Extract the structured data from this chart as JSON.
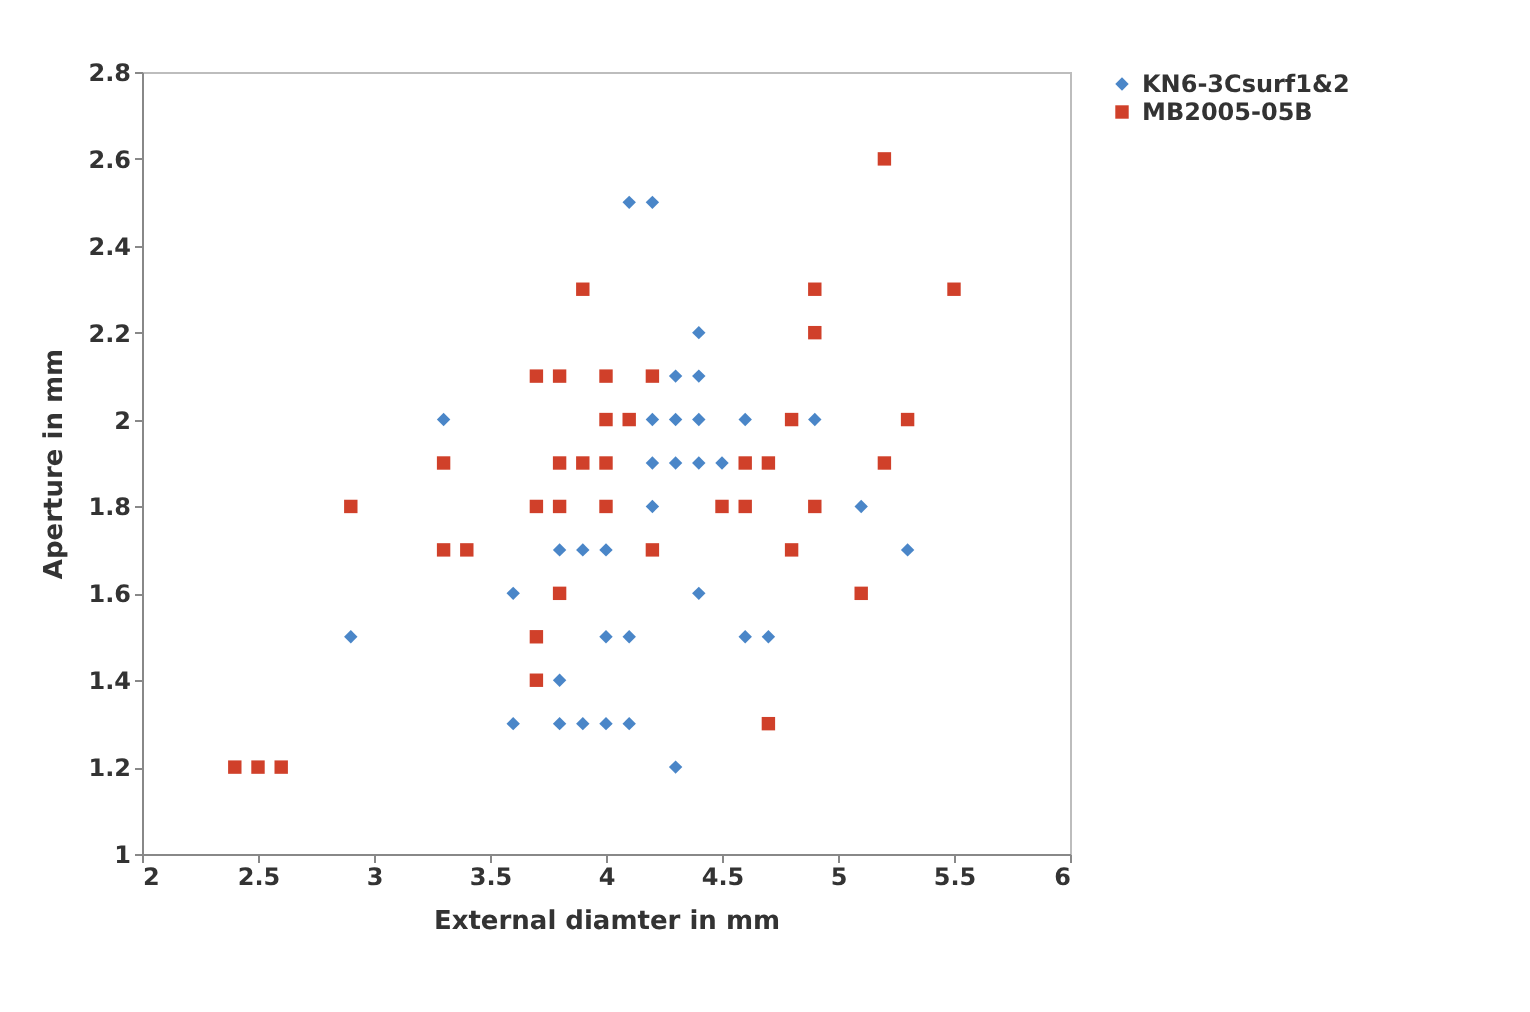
{
  "chart_data": {
    "type": "scatter",
    "xlabel": "External diamter in mm",
    "ylabel": "Aperture in mm",
    "xlim": [
      2,
      6
    ],
    "xticks": [
      2,
      2.5,
      3,
      3.5,
      4,
      4.5,
      5,
      5.5,
      6
    ],
    "ylim": [
      1,
      2.8
    ],
    "yticks": [
      1,
      1.2,
      1.4,
      1.6,
      1.8,
      2,
      2.2,
      2.4,
      2.6,
      2.8
    ],
    "grid": false,
    "legend": "right",
    "series": [
      {
        "name": "KN6-3Csurf1&2",
        "color": "#4a86c8",
        "marker": "diamond",
        "x": [
          2.9,
          3.3,
          3.6,
          3.6,
          3.8,
          3.8,
          3.9,
          4.0,
          4.1,
          4.3,
          4.0,
          4.1,
          4.6,
          4.7,
          4.4,
          3.8,
          3.9,
          4.0,
          5.3,
          4.2,
          5.1,
          4.2,
          4.3,
          4.4,
          4.5,
          4.2,
          4.3,
          4.4,
          4.6,
          4.9,
          4.3,
          4.4,
          4.4,
          4.1,
          4.2
        ],
        "values": [
          1.5,
          2.0,
          1.6,
          1.3,
          1.4,
          1.3,
          1.3,
          1.3,
          1.3,
          1.2,
          1.5,
          1.5,
          1.5,
          1.5,
          1.6,
          1.7,
          1.7,
          1.7,
          1.7,
          1.8,
          1.8,
          1.9,
          1.9,
          1.9,
          1.9,
          2.0,
          2.0,
          2.0,
          2.0,
          2.0,
          2.1,
          2.1,
          2.2,
          2.5,
          2.5
        ]
      },
      {
        "name": "MB2005-05B",
        "color": "#d0402a",
        "marker": "square",
        "x": [
          2.4,
          2.5,
          2.6,
          2.9,
          3.3,
          3.3,
          3.4,
          3.7,
          3.8,
          4.0,
          3.7,
          3.7,
          3.8,
          4.7,
          5.1,
          4.2,
          4.8,
          4.5,
          4.6,
          4.9,
          3.8,
          3.9,
          4.0,
          4.6,
          4.7,
          5.2,
          4.0,
          4.1,
          4.8,
          5.3,
          3.7,
          3.8,
          4.0,
          4.2,
          4.9,
          3.9,
          4.9,
          5.5,
          5.2
        ],
        "values": [
          1.2,
          1.2,
          1.2,
          1.8,
          1.9,
          1.7,
          1.7,
          1.8,
          1.8,
          1.8,
          1.5,
          1.4,
          1.6,
          1.3,
          1.6,
          1.7,
          1.7,
          1.8,
          1.8,
          1.8,
          1.9,
          1.9,
          1.9,
          1.9,
          1.9,
          1.9,
          2.0,
          2.0,
          2.0,
          2.0,
          2.1,
          2.1,
          2.1,
          2.1,
          2.2,
          2.3,
          2.3,
          2.3,
          2.6
        ]
      }
    ]
  }
}
